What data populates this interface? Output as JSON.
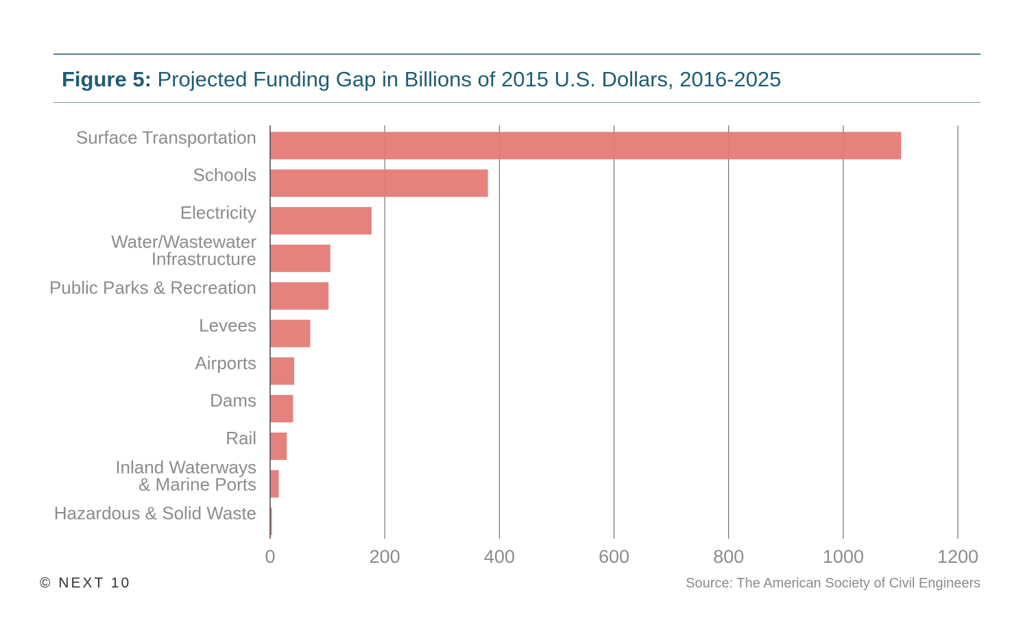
{
  "header": {
    "figure_label": "Figure 5:",
    "title": "Projected Funding Gap in Billions of 2015 U.S. Dollars, 2016-2025"
  },
  "footer": {
    "copyright": "© NEXT 10",
    "source": "Source: The American Society of Civil Engineers"
  },
  "colors": {
    "bar": "#e57b76",
    "title": "#1f5c74",
    "grid": "#555555"
  },
  "chart_data": {
    "type": "bar",
    "orientation": "horizontal",
    "categories": [
      [
        "Surface Transportation"
      ],
      [
        "Schools"
      ],
      [
        "Electricity"
      ],
      [
        "Water/Wastewater",
        "Infrastructure"
      ],
      [
        "Public Parks & Recreation"
      ],
      [
        "Levees"
      ],
      [
        "Airports"
      ],
      [
        "Dams"
      ],
      [
        "Rail"
      ],
      [
        "Inland Waterways",
        "& Marine Ports"
      ],
      [
        "Hazardous & Solid Waste"
      ]
    ],
    "values": [
      1101,
      380,
      177,
      105,
      102,
      70,
      42,
      40,
      29,
      15,
      3
    ],
    "xlim": [
      0,
      1200
    ],
    "xticks": [
      "0",
      "200",
      "400",
      "600",
      "800",
      "1000",
      "1200"
    ],
    "grid": true
  }
}
